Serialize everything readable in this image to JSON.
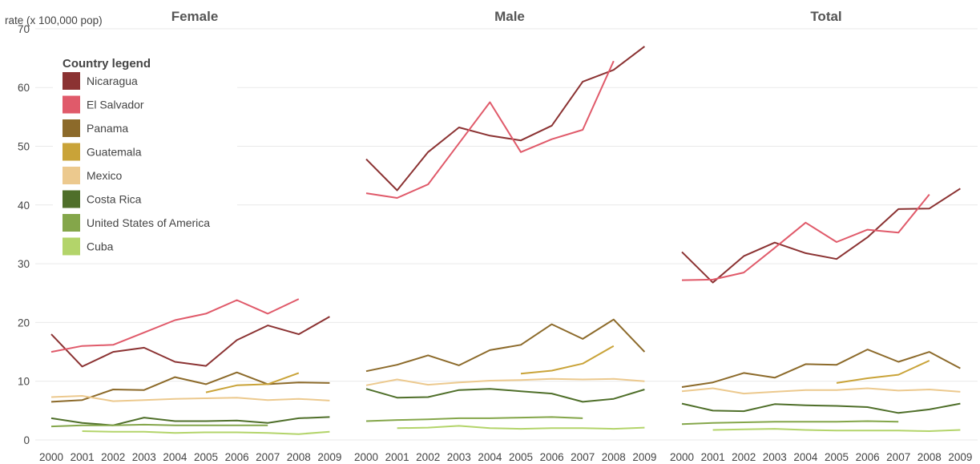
{
  "chart_data": {
    "type": "line",
    "ylabel": "rate (x 100,000 pop)",
    "ylim": [
      0,
      70
    ],
    "yticks": [
      0,
      10,
      20,
      30,
      40,
      50,
      60,
      70
    ],
    "x": [
      2000,
      2001,
      2002,
      2003,
      2004,
      2005,
      2006,
      2007,
      2008,
      2009
    ],
    "legend_title": "Country legend",
    "legend_position": "top-left",
    "grid": true,
    "series_colors": {
      "Nicaragua": "#8b3232",
      "El Salvador": "#e05a6a",
      "Panama": "#8c6a2a",
      "Guatemala": "#c9a338",
      "Mexico": "#ecc98e",
      "Costa Rica": "#4f6f2a",
      "United States of America": "#84a64a",
      "Cuba": "#b3d46a"
    },
    "legend": [
      "Nicaragua",
      "El Salvador",
      "Panama",
      "Guatemala",
      "Mexico",
      "Costa Rica",
      "United States of America",
      "Cuba"
    ],
    "panels": [
      {
        "title": "Female",
        "series": [
          {
            "name": "Nicaragua",
            "values": [
              18.0,
              12.5,
              15.0,
              15.7,
              13.3,
              12.6,
              17.0,
              19.5,
              18.0,
              21.0
            ]
          },
          {
            "name": "El Salvador",
            "values": [
              15.0,
              16.0,
              16.2,
              18.3,
              20.4,
              21.5,
              23.8,
              21.5,
              24.0,
              null
            ]
          },
          {
            "name": "Panama",
            "values": [
              6.5,
              6.8,
              8.6,
              8.5,
              10.7,
              9.5,
              11.5,
              9.5,
              9.8,
              9.7
            ]
          },
          {
            "name": "Guatemala",
            "values": [
              null,
              null,
              null,
              null,
              null,
              8.1,
              9.3,
              9.5,
              11.4,
              null
            ]
          },
          {
            "name": "Mexico",
            "values": [
              7.3,
              7.5,
              6.6,
              6.8,
              7.0,
              7.1,
              7.2,
              6.8,
              7.0,
              6.7
            ]
          },
          {
            "name": "Costa Rica",
            "values": [
              3.7,
              2.9,
              2.5,
              3.8,
              3.2,
              3.2,
              3.3,
              2.9,
              3.7,
              3.9
            ]
          },
          {
            "name": "United States of America",
            "values": [
              2.3,
              2.5,
              2.5,
              2.6,
              2.5,
              2.5,
              2.5,
              2.5,
              null,
              null
            ]
          },
          {
            "name": "Cuba",
            "values": [
              null,
              1.5,
              1.4,
              1.4,
              1.2,
              1.3,
              1.3,
              1.2,
              1.0,
              1.4
            ]
          }
        ]
      },
      {
        "title": "Male",
        "series": [
          {
            "name": "Nicaragua",
            "values": [
              47.8,
              42.5,
              49.0,
              53.2,
              51.8,
              51.0,
              53.5,
              61.0,
              63.0,
              67.0
            ]
          },
          {
            "name": "El Salvador",
            "values": [
              42.0,
              41.2,
              43.5,
              50.5,
              57.5,
              49.0,
              51.2,
              52.8,
              64.5,
              null
            ]
          },
          {
            "name": "Panama",
            "values": [
              11.7,
              12.8,
              14.4,
              12.7,
              15.3,
              16.2,
              19.7,
              17.2,
              20.5,
              15.0
            ]
          },
          {
            "name": "Guatemala",
            "values": [
              null,
              null,
              null,
              null,
              null,
              11.3,
              11.8,
              13.0,
              16.0,
              null
            ]
          },
          {
            "name": "Mexico",
            "values": [
              9.3,
              10.3,
              9.4,
              9.8,
              10.1,
              10.2,
              10.4,
              10.3,
              10.4,
              10.0
            ]
          },
          {
            "name": "Costa Rica",
            "values": [
              8.7,
              7.2,
              7.3,
              8.5,
              8.7,
              8.3,
              7.9,
              6.5,
              7.0,
              8.6
            ]
          },
          {
            "name": "United States of America",
            "values": [
              3.2,
              3.4,
              3.5,
              3.7,
              3.7,
              3.8,
              3.9,
              3.7,
              null,
              null
            ]
          },
          {
            "name": "Cuba",
            "values": [
              null,
              2.0,
              2.1,
              2.4,
              2.0,
              1.9,
              2.0,
              2.0,
              1.9,
              2.1
            ]
          }
        ]
      },
      {
        "title": "Total",
        "series": [
          {
            "name": "Nicaragua",
            "values": [
              32.0,
              26.8,
              31.3,
              33.6,
              31.8,
              30.8,
              34.5,
              39.3,
              39.4,
              42.8
            ]
          },
          {
            "name": "El Salvador",
            "values": [
              27.2,
              27.3,
              28.5,
              32.7,
              37.0,
              33.7,
              35.8,
              35.3,
              41.8,
              null
            ]
          },
          {
            "name": "Panama",
            "values": [
              9.0,
              9.8,
              11.4,
              10.6,
              12.9,
              12.8,
              15.4,
              13.3,
              15.0,
              12.2
            ]
          },
          {
            "name": "Guatemala",
            "values": [
              null,
              null,
              null,
              null,
              null,
              9.7,
              10.5,
              11.1,
              13.5,
              null
            ]
          },
          {
            "name": "Mexico",
            "values": [
              8.3,
              8.8,
              7.9,
              8.2,
              8.5,
              8.5,
              8.8,
              8.4,
              8.6,
              8.2
            ]
          },
          {
            "name": "Costa Rica",
            "values": [
              6.2,
              5.0,
              4.9,
              6.1,
              5.9,
              5.8,
              5.6,
              4.6,
              5.2,
              6.2
            ]
          },
          {
            "name": "United States of America",
            "values": [
              2.7,
              2.9,
              3.0,
              3.1,
              3.1,
              3.1,
              3.2,
              3.1,
              null,
              null
            ]
          },
          {
            "name": "Cuba",
            "values": [
              null,
              1.7,
              1.8,
              1.9,
              1.7,
              1.6,
              1.6,
              1.6,
              1.5,
              1.7
            ]
          }
        ]
      }
    ]
  }
}
